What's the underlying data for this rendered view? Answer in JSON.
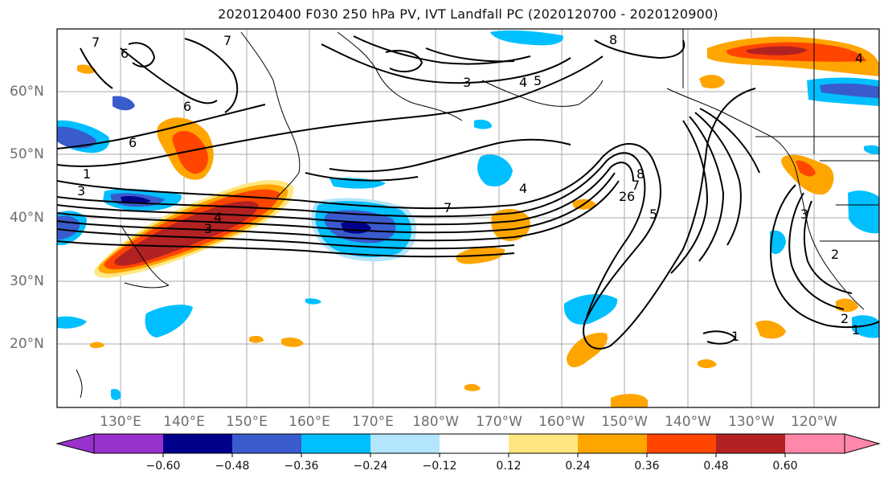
{
  "title": "2020120400 F030 250 hPa PV, IVT Landfall PC (2020120700 - 2020120900)",
  "map": {
    "lat_labels": [
      "60°N",
      "50°N",
      "40°N",
      "30°N",
      "20°N"
    ],
    "lon_labels": [
      "130°E",
      "140°E",
      "150°E",
      "160°E",
      "170°E",
      "180°W",
      "170°W",
      "160°W",
      "150°W",
      "140°W",
      "130°W",
      "120°W"
    ],
    "contour_labels": [
      "7",
      "6",
      "7",
      "8",
      "3",
      "4",
      "5",
      "6",
      "6",
      "1",
      "3",
      "7",
      "8",
      "7",
      "6",
      "5",
      "4",
      "3",
      "2",
      "1",
      "3",
      "4",
      "2",
      "2",
      "1",
      "4"
    ],
    "shading_colors": {
      "neg_strong": "#2f3fbf",
      "neg_mid": "#00bfff",
      "neg_light": "#b3e5fc",
      "pos_light": "#ffe680",
      "pos_mid": "#ffa500",
      "pos_strong": "#ff4500",
      "pos_very_strong": "#b22222"
    }
  },
  "colorbar": {
    "colors": [
      "#9932cc",
      "#00008b",
      "#3a5bcc",
      "#00bfff",
      "#b3e5fc",
      "#ffffff",
      "#ffe680",
      "#ffa500",
      "#ff4500",
      "#b22222",
      "#ff88aa"
    ],
    "tick_labels": [
      "−0.60",
      "−0.48",
      "−0.36",
      "−0.24",
      "−0.12",
      "0.12",
      "0.24",
      "0.36",
      "0.48",
      "0.60"
    ]
  }
}
